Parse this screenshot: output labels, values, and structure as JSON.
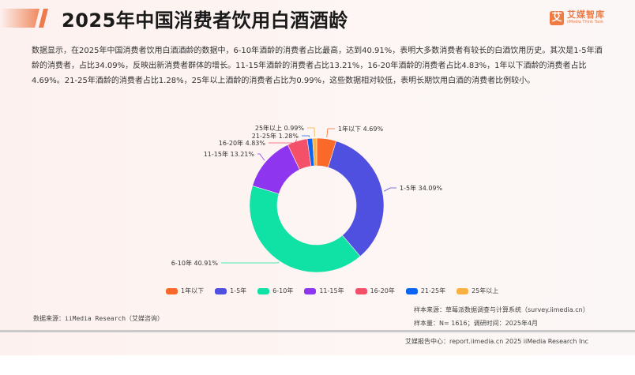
{
  "header": {
    "title": "2025年中国消费者饮用白酒酒龄",
    "logo_glyph": "艾",
    "logo_cn": "艾媒智库",
    "logo_en": "iiMedia Think Tank"
  },
  "description": "数据显示，在2025年中国消费者饮用白酒酒龄的数据中，6-10年酒龄的消费者占比最高，达到40.91%，表明大多数消费者有较长的白酒饮用历史。其次是1-5年酒龄的消费者，占比34.09%，反映出新消费者群体的增长。11-15年酒龄的消费者占比13.21%，16-20年酒龄的消费者占比4.83%，1年以下酒龄的消费者占比4.69%。21-25年酒龄的消费者占比1.28%，25年以上酒龄的消费者占比为0.99%，这些数据相对较低，表明长期饮用白酒的消费者比例较小。",
  "chart_data": {
    "type": "pie",
    "subtype": "donut",
    "title": "2025年中国消费者饮用白酒酒龄",
    "unit": "%",
    "categories": [
      "1年以下",
      "1-5年",
      "6-10年",
      "11-15年",
      "16-20年",
      "21-25年",
      "25年以上"
    ],
    "values": [
      4.69,
      34.09,
      40.91,
      13.21,
      4.83,
      1.28,
      0.99
    ],
    "labels": [
      "1年以下 4.69%",
      "1-5年 34.09%",
      "6-10年 40.91%",
      "11-15年 13.21%",
      "16-20年 4.83%",
      "21-25年 1.28%",
      "25年以上 0.99%"
    ],
    "colors": [
      "#f96a2a",
      "#4f4fe0",
      "#10e2a6",
      "#8e35f0",
      "#f4506a",
      "#0d63f2",
      "#fbb042"
    ],
    "start_angle": "12 o'clock, clockwise",
    "legend_position": "bottom"
  },
  "legend": [
    {
      "label": "1年以下",
      "color": "#f96a2a"
    },
    {
      "label": "1-5年",
      "color": "#4f4fe0"
    },
    {
      "label": "6-10年",
      "color": "#10e2a6"
    },
    {
      "label": "11-15年",
      "color": "#8e35f0"
    },
    {
      "label": "16-20年",
      "color": "#f4506a"
    },
    {
      "label": "21-25年",
      "color": "#0d63f2"
    },
    {
      "label": "25年以上",
      "color": "#fbb042"
    }
  ],
  "footer": {
    "data_source": "数据来源：iiMedia Research（艾媒咨询）",
    "sample_source": "样本来源：草莓派数据调查与计算系统（survey.iimedia.cn）",
    "sample_size": "样本量：N= 1616；调研时间：2025年4月",
    "report_center": "艾媒报告中心：report.iimedia.cn   2025 iiMedia Research Inc"
  }
}
